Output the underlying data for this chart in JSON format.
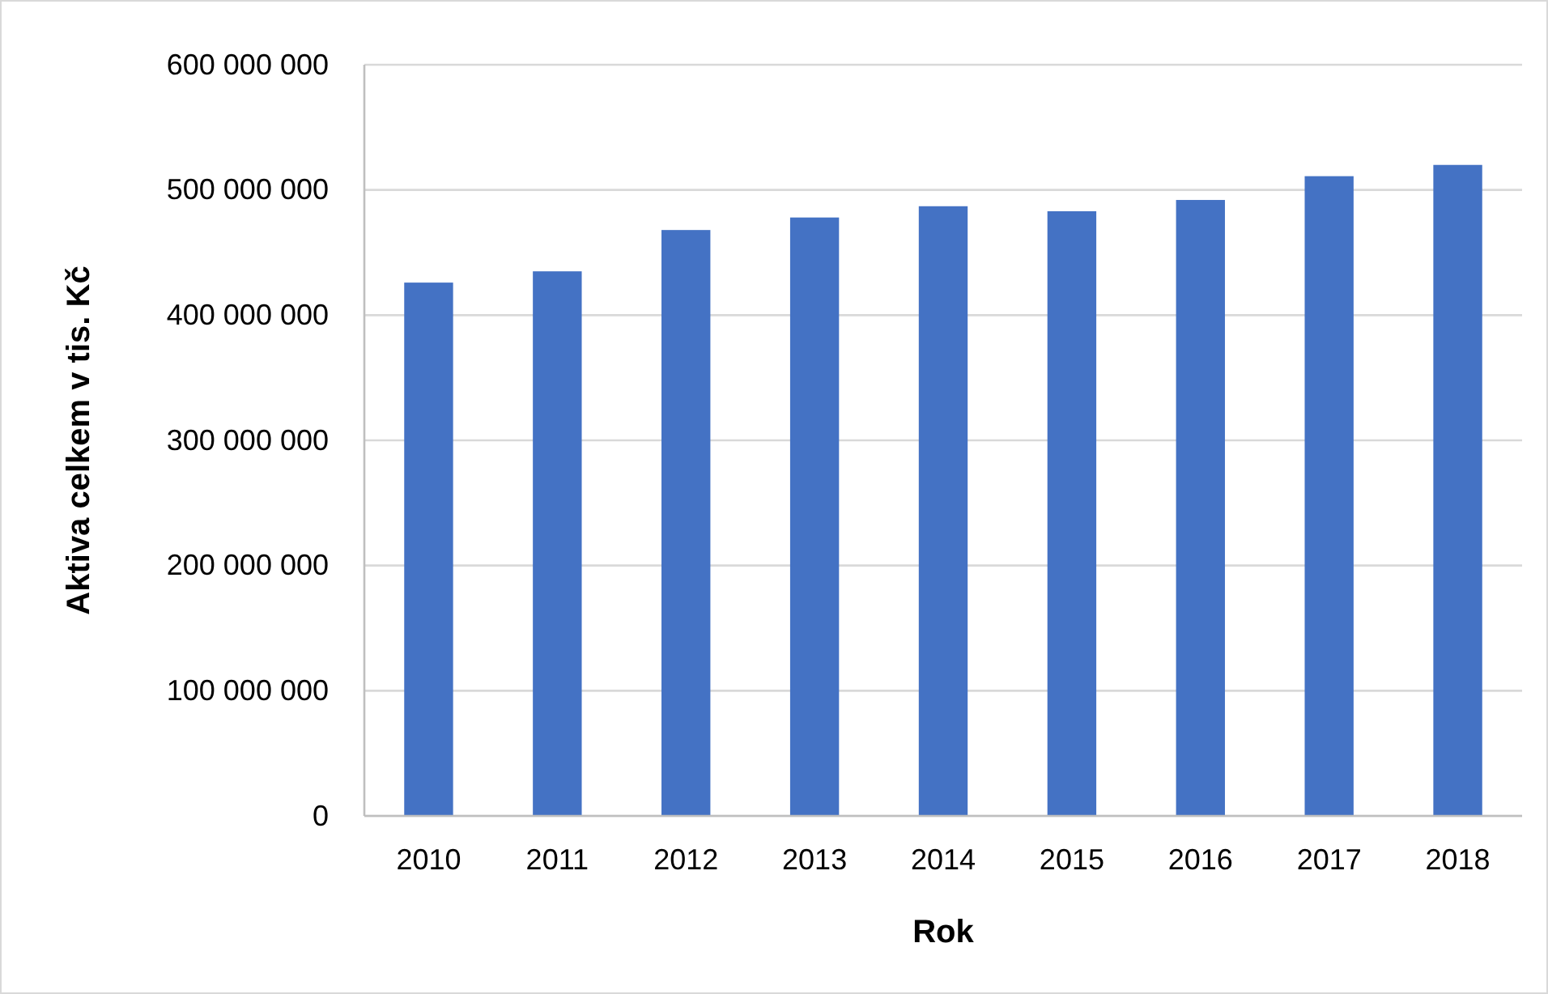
{
  "chart_data": {
    "type": "bar",
    "xlabel": "Rok",
    "ylabel": "Aktiva celkem v tis. Kč",
    "categories": [
      "2010",
      "2011",
      "2012",
      "2013",
      "2014",
      "2015",
      "2016",
      "2017",
      "2018"
    ],
    "values": [
      426000000,
      435000000,
      468000000,
      478000000,
      487000000,
      483000000,
      492000000,
      511000000,
      520000000
    ],
    "color": "#4472c4",
    "ylim": [
      0,
      600000000
    ],
    "yticks": [
      {
        "value": 0,
        "label": "0"
      },
      {
        "value": 100000000,
        "label": "100 000 000"
      },
      {
        "value": 200000000,
        "label": "200 000 000"
      },
      {
        "value": 300000000,
        "label": "300 000 000"
      },
      {
        "value": 400000000,
        "label": "400 000 000"
      },
      {
        "value": 500000000,
        "label": "500 000 000"
      },
      {
        "value": 600000000,
        "label": "600 000 000"
      }
    ],
    "grid": "y"
  }
}
